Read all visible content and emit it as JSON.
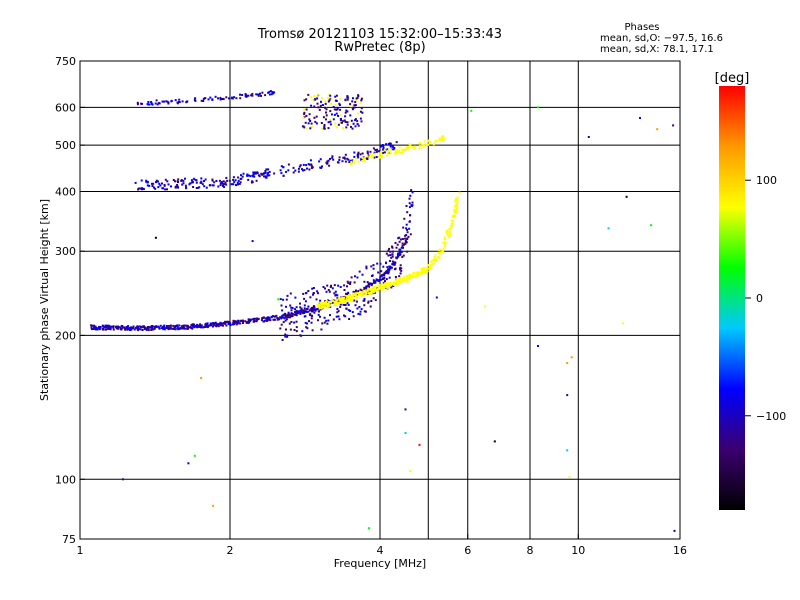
{
  "header": {
    "title_line1": "Tromsø 20121103 15:32:00–15:33:43",
    "title_line2": "RwPretec (8p)"
  },
  "stats": {
    "heading": "Phases",
    "line_o": "mean, sd,O: −97.5, 16.6",
    "line_x": "mean, sd,X:  78.1, 17.1"
  },
  "colorbar": {
    "unit_label": "[deg]",
    "ticks": [
      "100",
      "0",
      "−100"
    ],
    "tick_values": [
      100,
      0,
      -100
    ],
    "range": [
      -180,
      180
    ],
    "colors": [
      "#000000",
      "#3b006f",
      "#0000ff",
      "#00c8ff",
      "#00ff00",
      "#ffff00",
      "#ff9900",
      "#ff0000"
    ]
  },
  "chart_data": {
    "type": "scatter",
    "xlabel": "Frequency [MHz]",
    "ylabel": "Stationary phase Virtual Height [km]",
    "xscale": "log",
    "yscale": "log",
    "xlim": [
      1,
      16
    ],
    "ylim": [
      75,
      750
    ],
    "x_ticks": [
      1,
      2,
      4,
      6,
      8,
      10,
      16
    ],
    "x_tick_labels": [
      "1",
      "2",
      "4",
      "6",
      "8",
      "10",
      "16"
    ],
    "y_ticks": [
      75,
      100,
      200,
      300,
      400,
      500,
      600,
      750
    ],
    "y_tick_labels": [
      "75",
      "100",
      "200",
      "300",
      "400",
      "500",
      "600",
      "750"
    ],
    "x_gridlines": [
      2,
      4,
      5,
      6,
      8,
      10
    ],
    "y_gridlines": [
      100,
      200,
      300,
      400,
      500,
      600
    ],
    "color_encoding": "phase [deg]",
    "o_mode_trace": [
      [
        1.05,
        208
      ],
      [
        1.3,
        207
      ],
      [
        1.6,
        208
      ],
      [
        2.0,
        212
      ],
      [
        2.5,
        218
      ],
      [
        3.0,
        228
      ],
      [
        3.5,
        243
      ],
      [
        4.0,
        262
      ],
      [
        4.3,
        285
      ],
      [
        4.5,
        315
      ],
      [
        4.6,
        360
      ],
      [
        4.65,
        405
      ]
    ],
    "x_mode_trace": [
      [
        3.0,
        230
      ],
      [
        3.5,
        240
      ],
      [
        4.0,
        252
      ],
      [
        4.5,
        262
      ],
      [
        5.0,
        276
      ],
      [
        5.3,
        300
      ],
      [
        5.5,
        330
      ],
      [
        5.65,
        360
      ],
      [
        5.75,
        395
      ]
    ],
    "multi_hop_trace_o": [
      [
        1.3,
        412
      ],
      [
        2.0,
        420
      ],
      [
        2.5,
        440
      ],
      [
        3.0,
        458
      ],
      [
        3.5,
        472
      ],
      [
        4.0,
        485
      ],
      [
        4.3,
        500
      ]
    ],
    "multi_hop_trace_x": [
      [
        3.5,
        462
      ],
      [
        4.0,
        478
      ],
      [
        4.5,
        492
      ],
      [
        5.0,
        505
      ],
      [
        5.4,
        518
      ]
    ],
    "third_hop_trace": [
      [
        1.3,
        612
      ],
      [
        1.6,
        618
      ],
      [
        2.0,
        630
      ],
      [
        2.5,
        645
      ]
    ],
    "top_cluster": {
      "x": [
        2.8,
        3.7
      ],
      "y": [
        540,
        640
      ]
    },
    "scattered_points": [
      [
        1.42,
        320
      ],
      [
        2.22,
        315
      ],
      [
        2.5,
        238
      ],
      [
        1.75,
        163
      ],
      [
        1.22,
        100
      ],
      [
        1.65,
        108
      ],
      [
        1.7,
        112
      ],
      [
        1.85,
        88
      ],
      [
        4.5,
        140
      ],
      [
        4.5,
        125
      ],
      [
        4.6,
        104
      ],
      [
        4.8,
        118
      ],
      [
        5.2,
        240
      ],
      [
        6.1,
        590
      ],
      [
        6.5,
        230
      ],
      [
        6.8,
        120
      ],
      [
        8.3,
        190
      ],
      [
        8.3,
        600
      ],
      [
        9.5,
        175
      ],
      [
        9.5,
        150
      ],
      [
        9.5,
        115
      ],
      [
        9.6,
        101
      ],
      [
        9.7,
        180
      ],
      [
        10.5,
        520
      ],
      [
        11.5,
        335
      ],
      [
        12.3,
        212
      ],
      [
        12.5,
        390
      ],
      [
        13.3,
        570
      ],
      [
        14.0,
        340
      ],
      [
        14.4,
        540
      ],
      [
        15.5,
        550
      ],
      [
        15.6,
        78
      ],
      [
        3.8,
        79
      ]
    ]
  }
}
